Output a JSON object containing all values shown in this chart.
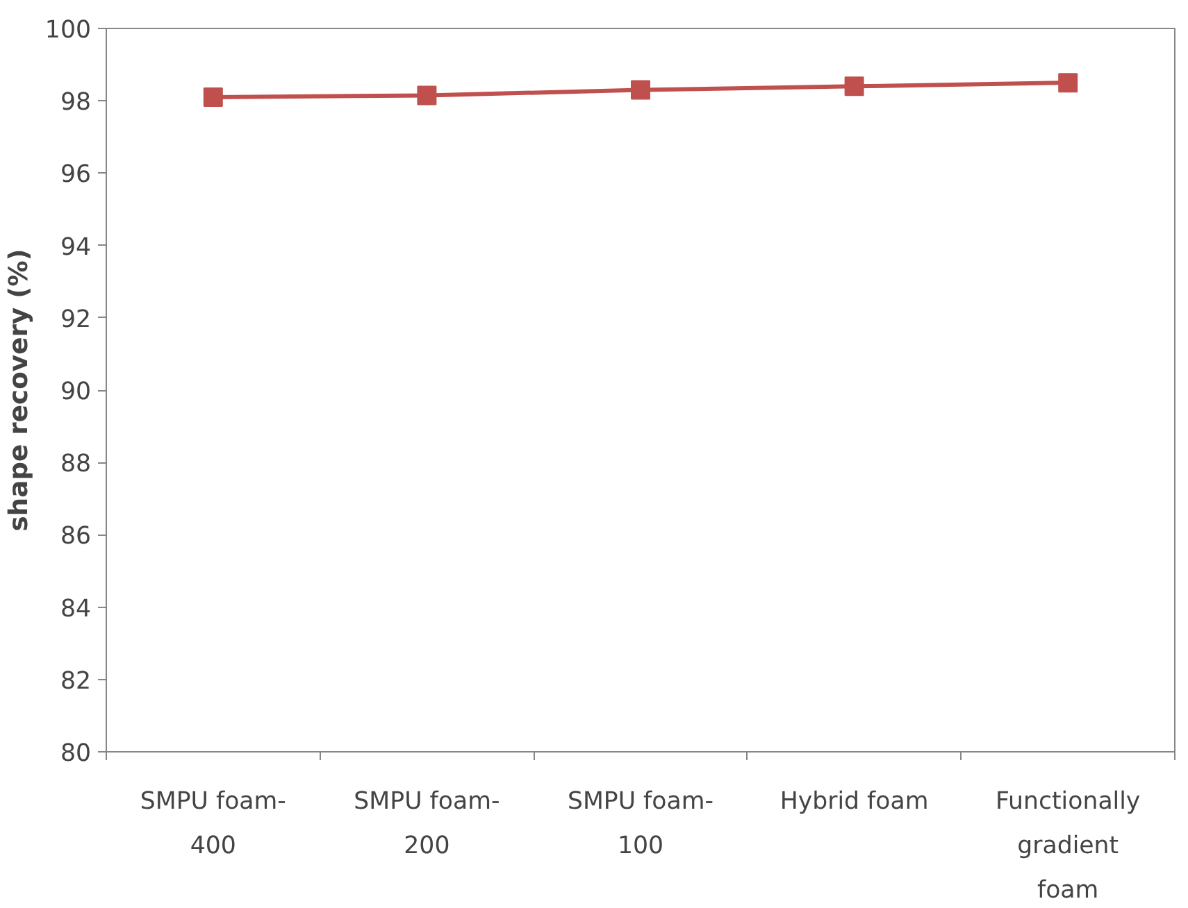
{
  "chart_data": {
    "type": "line",
    "ylabel": "shape recovery (%)",
    "categories": [
      "SMPU foam-400",
      "SMPU foam-200",
      "SMPU foam-100",
      "Hybrid foam",
      "Functionally gradient foam"
    ],
    "series": [
      {
        "color": "#c0504d",
        "values": [
          98.1,
          98.15,
          98.3,
          98.4,
          98.5
        ]
      }
    ],
    "ylim": [
      80,
      100
    ],
    "yticks": [
      80,
      82,
      84,
      86,
      88,
      90,
      92,
      94,
      96,
      98,
      100
    ],
    "marker": "square",
    "line_style": "solid"
  }
}
